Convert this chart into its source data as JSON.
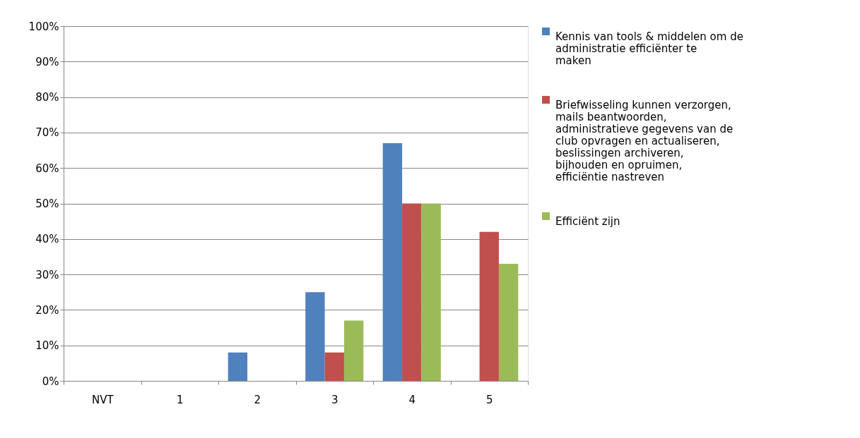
{
  "chart_data": {
    "type": "bar",
    "categories": [
      "NVT",
      "1",
      "2",
      "3",
      "4",
      "5"
    ],
    "series": [
      {
        "name": "Kennis van tools & middelen om de administratie efficiënter te maken",
        "color": "#4f81bd",
        "values": [
          0,
          0,
          8,
          25,
          67,
          0
        ]
      },
      {
        "name": "Briefwisseling kunnen verzorgen, mails beantwoorden, administratieve gegevens van de club opvragen en actualiseren, beslissingen archiveren, bijhouden en opruimen, efficiëntie nastreven",
        "color": "#c0504d",
        "values": [
          0,
          0,
          0,
          8,
          50,
          42
        ]
      },
      {
        "name": "Efficiënt zijn",
        "color": "#9bbb59",
        "values": [
          0,
          0,
          0,
          17,
          50,
          33
        ]
      }
    ],
    "ylim": [
      0,
      100
    ],
    "yticks": [
      {
        "value": 0,
        "label": "0%"
      },
      {
        "value": 10,
        "label": "10%"
      },
      {
        "value": 20,
        "label": "20%"
      },
      {
        "value": 30,
        "label": "30%"
      },
      {
        "value": 40,
        "label": "40%"
      },
      {
        "value": 50,
        "label": "50%"
      },
      {
        "value": 60,
        "label": "60%"
      },
      {
        "value": 70,
        "label": "70%"
      },
      {
        "value": 80,
        "label": "80%"
      },
      {
        "value": 90,
        "label": "90%"
      },
      {
        "value": 100,
        "label": "100%"
      }
    ],
    "grid": "y",
    "legend": "right"
  }
}
